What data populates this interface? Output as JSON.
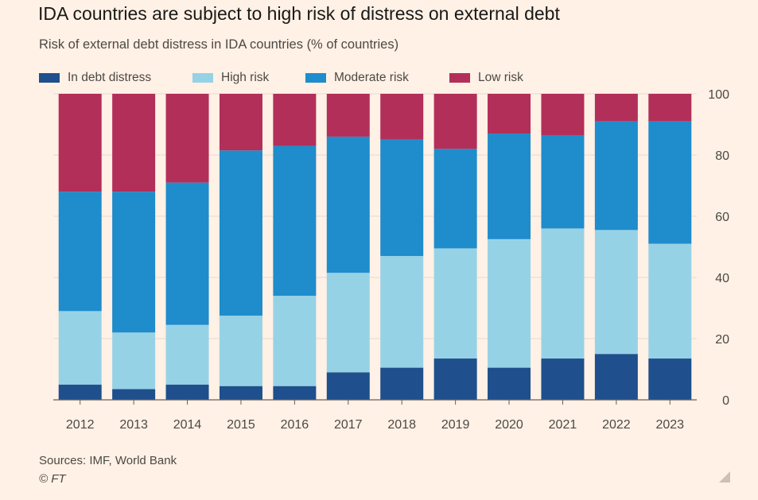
{
  "title": "IDA countries are subject to high risk of distress on external debt",
  "subtitle": "Risk of external debt distress in IDA countries (% of countries)",
  "legend": [
    {
      "label": "In debt distress",
      "color": "#1f4f8c"
    },
    {
      "label": "High risk",
      "color": "#96d2e6"
    },
    {
      "label": "Moderate risk",
      "color": "#1f8ccc"
    },
    {
      "label": "Low risk",
      "color": "#b22f5a"
    }
  ],
  "chart_data": {
    "type": "bar",
    "stacked": true,
    "categories": [
      "2012",
      "2013",
      "2014",
      "2015",
      "2016",
      "2017",
      "2018",
      "2019",
      "2020",
      "2021",
      "2022",
      "2023"
    ],
    "series": [
      {
        "name": "In debt distress",
        "color": "#1f4f8c",
        "values": [
          5,
          3.5,
          5,
          4.5,
          4.5,
          9,
          10.5,
          13.5,
          10.5,
          13.5,
          15,
          13.5
        ]
      },
      {
        "name": "High risk",
        "color": "#96d2e6",
        "values": [
          24,
          18.5,
          19.5,
          23,
          29.5,
          32.5,
          36.5,
          36,
          42,
          42.5,
          40.5,
          37.5
        ]
      },
      {
        "name": "Moderate risk",
        "color": "#1f8ccc",
        "values": [
          39,
          46,
          46.5,
          54,
          49,
          44.5,
          38,
          32.5,
          34.5,
          30.5,
          35.5,
          40
        ]
      },
      {
        "name": "Low risk",
        "color": "#b22f5a",
        "values": [
          32,
          32,
          29,
          18.5,
          17,
          14,
          15,
          18,
          13,
          13.5,
          9,
          9
        ]
      }
    ],
    "ylim": [
      0,
      100
    ],
    "yticks": [
      0,
      20,
      40,
      60,
      80,
      100
    ],
    "y_axis_side": "right",
    "grid": true,
    "legend_position": "top-left"
  },
  "footer": {
    "sources": "Sources: IMF, World Bank",
    "copyright": "© FT"
  },
  "icons": {
    "resize": "resize-corner-icon"
  }
}
